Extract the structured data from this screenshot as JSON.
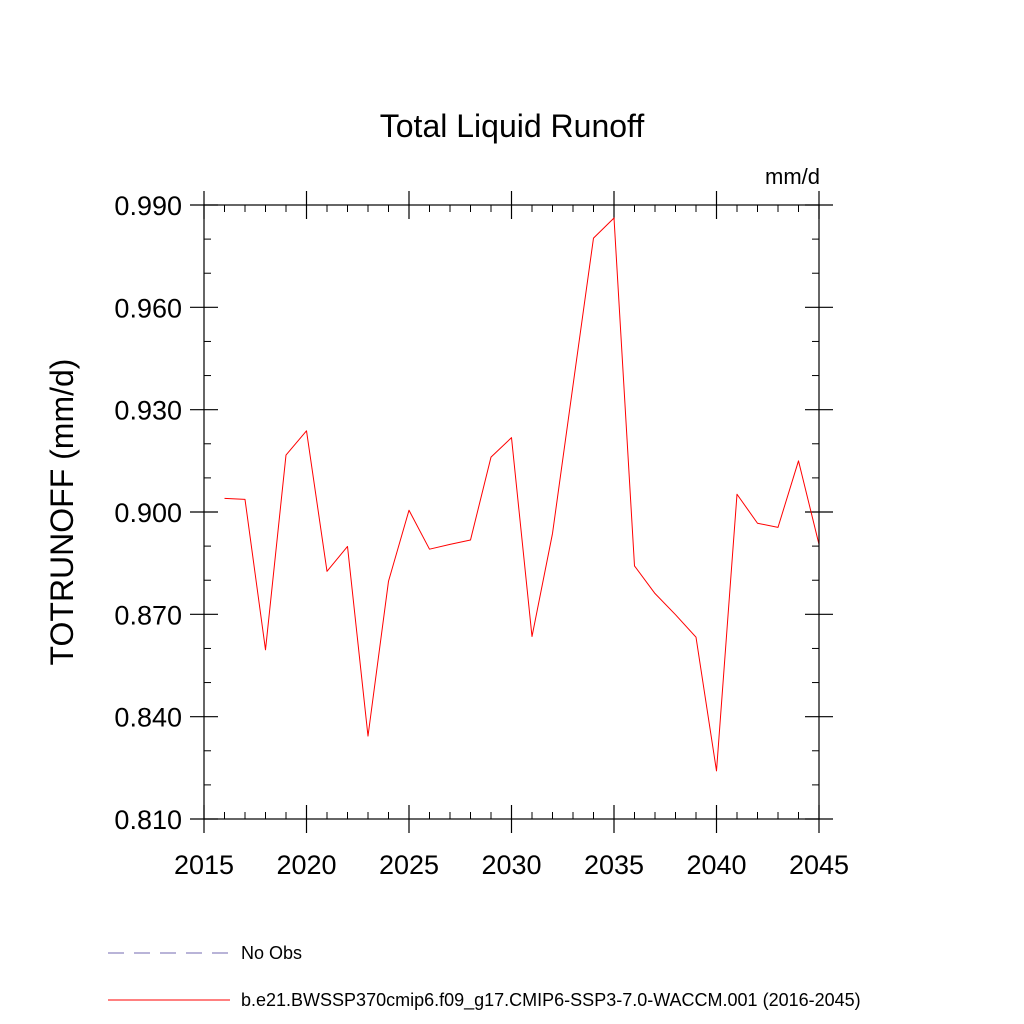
{
  "chart_data": {
    "type": "line",
    "title": "Total Liquid Runoff",
    "units_label": "mm/d",
    "ylabel": "TOTRUNOFF  (mm/d)",
    "xlabel": "",
    "xlim": [
      2015,
      2045
    ],
    "ylim": [
      0.81,
      0.99
    ],
    "x_ticks": [
      2015,
      2020,
      2025,
      2030,
      2035,
      2040,
      2045
    ],
    "x_tick_labels": [
      "2015",
      "2020",
      "2025",
      "2030",
      "2035",
      "2040",
      "2045"
    ],
    "y_ticks": [
      0.81,
      0.84,
      0.87,
      0.9,
      0.93,
      0.96,
      0.99
    ],
    "y_tick_labels": [
      "0.810",
      "0.840",
      "0.870",
      "0.900",
      "0.930",
      "0.960",
      "0.990"
    ],
    "series": [
      {
        "name": "b.e21.BWSSP370cmip6.f09_g17.CMIP6-SSP3-7.0-WACCM.001 (2016-2045)",
        "color": "#ff0000",
        "x": [
          2016,
          2017,
          2018,
          2019,
          2020,
          2021,
          2022,
          2023,
          2024,
          2025,
          2026,
          2027,
          2028,
          2029,
          2030,
          2031,
          2032,
          2033,
          2034,
          2035,
          2036,
          2037,
          2038,
          2039,
          2040,
          2041,
          2042,
          2043,
          2044,
          2045
        ],
        "values": [
          0.904,
          0.9037,
          0.8596,
          0.9167,
          0.9238,
          0.8826,
          0.8899,
          0.8343,
          0.8797,
          0.9005,
          0.8891,
          0.8905,
          0.8918,
          0.9161,
          0.9218,
          0.8635,
          0.8937,
          0.9371,
          0.9803,
          0.9862,
          0.8842,
          0.8761,
          0.8699,
          0.8633,
          0.8241,
          0.9052,
          0.8967,
          0.8955,
          0.915,
          0.8905
        ]
      }
    ],
    "legend": [
      {
        "label": "No Obs",
        "style": "dashed",
        "color": "#8f86c0"
      },
      {
        "label": "b.e21.BWSSP370cmip6.f09_g17.CMIP6-SSP3-7.0-WACCM.001 (2016-2045)",
        "style": "solid",
        "color": "#ff0000"
      }
    ],
    "grid": false,
    "legend_position": "bottom-left"
  }
}
